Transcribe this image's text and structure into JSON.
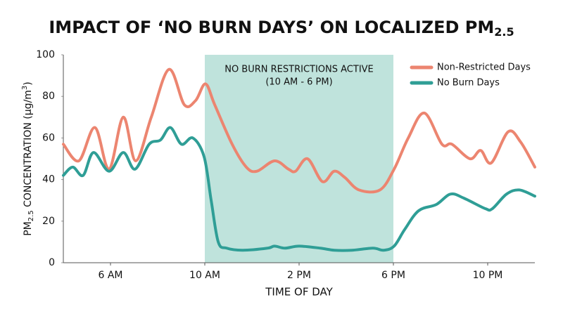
{
  "chart_data": {
    "type": "line",
    "title": "IMPACT OF ‘NO BURN DAYS’ ON LOCALIZED PM",
    "title_subscript": "2.5",
    "ylabel": [
      "PM",
      "2.5",
      " CONCENTRATION (µg/m",
      "3",
      ")"
    ],
    "xlabel": "TIME OF DAY",
    "annotation": [
      "NO BURN RESTRICTIONS ACTIVE",
      "(10 AM - 6 PM)"
    ],
    "shade": [
      10,
      18
    ],
    "shade_color": "#bfe3dc",
    "xlim": [
      4,
      24
    ],
    "xticks": [
      {
        "value": 6,
        "label": "6 AM"
      },
      {
        "value": 10,
        "label": "10 AM"
      },
      {
        "value": 14,
        "label": "2 PM"
      },
      {
        "value": 18,
        "label": "6 PM"
      },
      {
        "value": 22,
        "label": "10 PM"
      }
    ],
    "ylim": [
      0,
      100
    ],
    "yticks": [
      0,
      20,
      40,
      60,
      80,
      100
    ],
    "legend": "top-right",
    "series": [
      {
        "name": "Non-Restricted Days",
        "color": "#ec8570",
        "x": [
          4,
          4.66,
          5.34,
          5.94,
          6.54,
          7.07,
          7.73,
          8.48,
          9.13,
          9.61,
          10.03,
          10.42,
          11.16,
          11.76,
          12.21,
          12.96,
          13.55,
          13.85,
          14.36,
          14.99,
          15.49,
          15.94,
          16.54,
          17.43,
          18.03,
          18.63,
          19.31,
          20.06,
          20.48,
          21.25,
          21.7,
          22.15,
          22.87,
          23.4,
          24
        ],
        "values": [
          57,
          49,
          65,
          45,
          70,
          49,
          70,
          93,
          76,
          78,
          86,
          76,
          57,
          46,
          44,
          49,
          45,
          44,
          50,
          39,
          44,
          41,
          35,
          35,
          45,
          60,
          72,
          57,
          57,
          50,
          54,
          48,
          63,
          58,
          46
        ]
      },
      {
        "name": "No Burn Days",
        "color": "#2f9e96",
        "x": [
          4,
          4.4,
          4.84,
          5.28,
          5.94,
          6.54,
          7.04,
          7.64,
          8.12,
          8.54,
          9.01,
          9.49,
          9.97,
          10.27,
          10.57,
          10.93,
          11.6,
          12.66,
          12.96,
          13.4,
          14,
          14.9,
          15.5,
          16.24,
          17.13,
          17.58,
          18.03,
          18.48,
          19.07,
          19.82,
          20.42,
          21,
          21.9,
          22.2,
          22.8,
          23.34,
          24
        ],
        "values": [
          42,
          46,
          42,
          53,
          44,
          53,
          45,
          57,
          59,
          65,
          57,
          60,
          51,
          30,
          10,
          7,
          6,
          7,
          8,
          7,
          8,
          7,
          6,
          6,
          7,
          6,
          8,
          16,
          25,
          28,
          33,
          31,
          26,
          26,
          33,
          35,
          32
        ]
      }
    ]
  }
}
